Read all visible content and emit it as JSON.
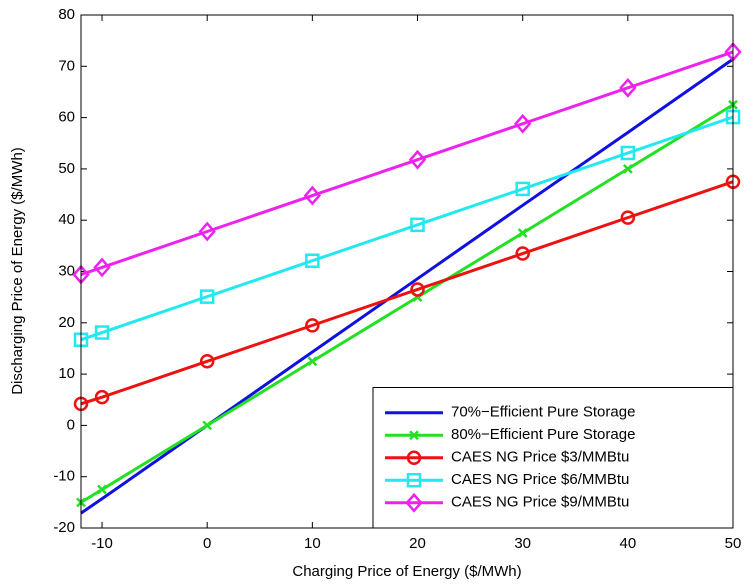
{
  "chart_data": {
    "type": "line",
    "x_label": "Charging Price of Energy ($/MWh)",
    "y_label": "Discharging Price of Energy ($/MWh)",
    "x": [
      -12,
      -10,
      0,
      10,
      20,
      30,
      40,
      50
    ],
    "series": [
      {
        "name": "70%−Efficient Pure Storage",
        "color": "#1010e0",
        "marker": "none",
        "values": [
          -17.1,
          -14.3,
          0,
          14.3,
          28.6,
          42.9,
          57.1,
          71.4
        ]
      },
      {
        "name": "80%−Efficient Pure Storage",
        "color": "#22e022",
        "marker": "x",
        "values": [
          -15,
          -12.5,
          0,
          12.5,
          25,
          37.5,
          50,
          62.5
        ]
      },
      {
        "name": "CAES NG Price $3/MMBtu",
        "color": "#ee1111",
        "marker": "circle",
        "values": [
          4.2,
          5.5,
          12.5,
          19.5,
          26.5,
          33.5,
          40.5,
          47.5
        ]
      },
      {
        "name": "CAES NG Price $6/MMBtu",
        "color": "#22e8f0",
        "marker": "square",
        "values": [
          16.7,
          18.1,
          25.1,
          32.1,
          39.1,
          46.1,
          53.1,
          60.1
        ]
      },
      {
        "name": "CAES NG Price $9/MMBtu",
        "color": "#ee22ee",
        "marker": "diamond",
        "values": [
          29.4,
          30.8,
          37.8,
          44.8,
          51.8,
          58.8,
          65.8,
          72.8
        ]
      }
    ],
    "xlim": [
      -12,
      50
    ],
    "xticks": [
      -10,
      0,
      10,
      20,
      30,
      40,
      50
    ],
    "ylim": [
      -20,
      80
    ],
    "yticks": [
      -20,
      -10,
      0,
      10,
      20,
      30,
      40,
      50,
      60,
      70,
      80
    ],
    "legend": "lower right"
  }
}
